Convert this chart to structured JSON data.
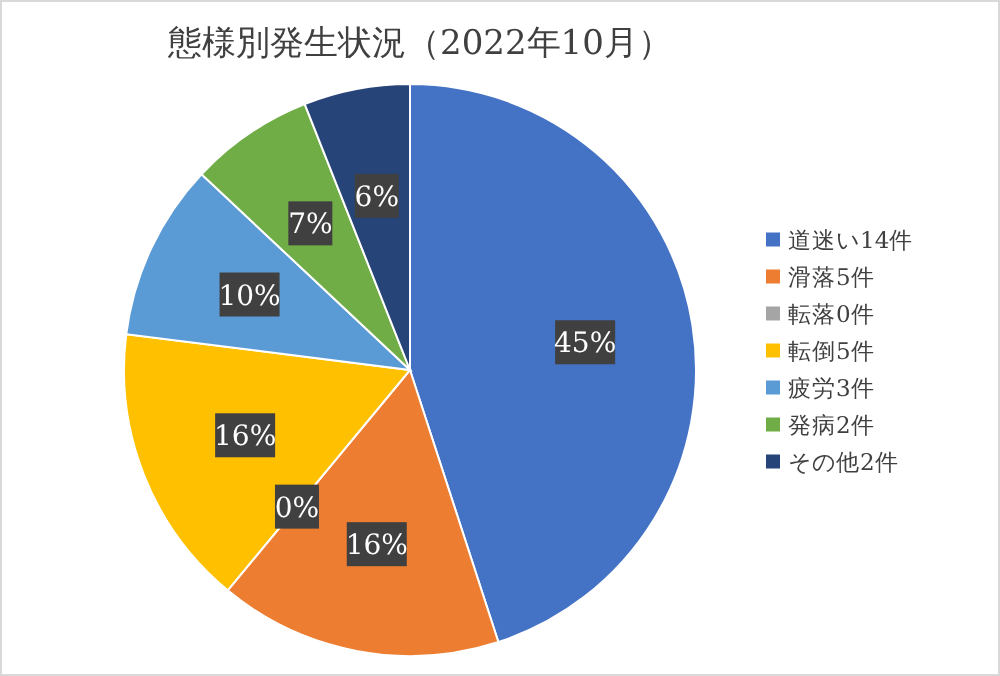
{
  "chart_data": {
    "type": "pie",
    "title": "態様別発生状況（2022年10月）",
    "categories": [
      "道迷い14件",
      "滑落5件",
      "転落0件",
      "転倒5件",
      "疲労3件",
      "発病2件",
      "その他2件"
    ],
    "values": [
      45,
      16,
      0,
      16,
      10,
      7,
      6
    ],
    "colors": [
      "#4472c4",
      "#ed7d31",
      "#a5a5a5",
      "#ffc000",
      "#5b9bd5",
      "#70ad47",
      "#264478"
    ],
    "value_labels": [
      "45%",
      "16%",
      "0%",
      "16%",
      "10%",
      "7%",
      "6%"
    ],
    "legend": "right"
  }
}
